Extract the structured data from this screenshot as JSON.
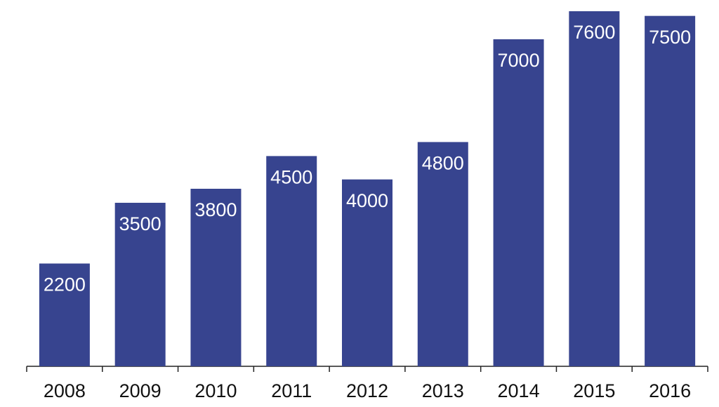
{
  "chart_data": {
    "type": "bar",
    "categories": [
      "2008",
      "2009",
      "2010",
      "2011",
      "2012",
      "2013",
      "2014",
      "2015",
      "2016"
    ],
    "values": [
      2200,
      3500,
      3800,
      4500,
      4000,
      4800,
      7000,
      7600,
      7500
    ],
    "color": "#37448f"
  }
}
